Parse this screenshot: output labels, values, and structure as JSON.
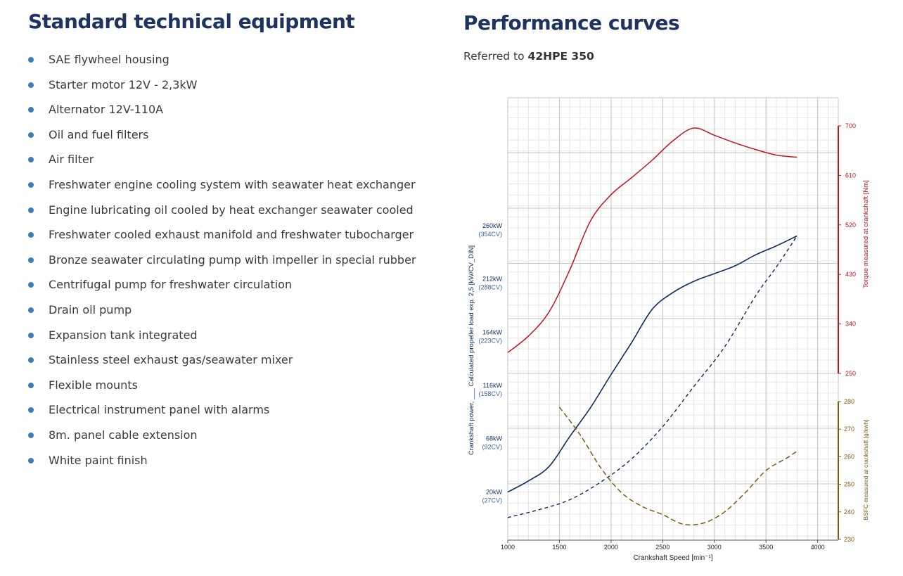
{
  "equipment": {
    "title": "Standard technical equipment",
    "items": [
      "SAE flywheel housing",
      "Starter motor 12V - 2,3kW",
      "Alternator 12V-110A",
      "Oil and fuel filters",
      "Air filter",
      "Freshwater engine cooling system with seawater heat exchanger",
      "Engine lubricating oil cooled by heat exchanger seawater cooled",
      "Freshwater cooled exhaust manifold and freshwater tubocharger",
      "Bronze seawater circulating pump with impeller in special rubber",
      "Centrifugal pump for freshwater circulation",
      "Drain oil pump",
      "Expansion tank integrated",
      "Stainless steel exhaust gas/seawater mixer",
      "Flexible mounts",
      "Electrical instrument panel with alarms",
      "8m. panel cable extension",
      "White paint finish"
    ]
  },
  "performance": {
    "title": "Performance curves",
    "referred_prefix": "Referred to",
    "model": "42HPE 350"
  },
  "colors": {
    "heading": "#1d3461",
    "bullet": "#3f7db8",
    "power": "#0d2a5c",
    "torque": "#c0121f",
    "bsfc": "#7a5c10",
    "grid": "#cccccc"
  },
  "chart_data": {
    "type": "line",
    "xlabel": "Crankshaft Speed [min⁻¹]",
    "xlim": [
      1000,
      4200
    ],
    "xticks": [
      1000,
      1500,
      2000,
      2500,
      3000,
      3500,
      4000
    ],
    "ylabel_power": "Crankshaft power, ___ Calculated propeller load exp. 2,5 [kW/CV_DIN]",
    "power_ticks": [
      {
        "kw": "20kW",
        "cv": "(27CV)",
        "value": 20
      },
      {
        "kw": "68kW",
        "cv": "(92CV)",
        "value": 68
      },
      {
        "kw": "116kW",
        "cv": "(158CV)",
        "value": 116
      },
      {
        "kw": "164kW",
        "cv": "(223CV)",
        "value": 164
      },
      {
        "kw": "212kW",
        "cv": "(288CV)",
        "value": 212
      },
      {
        "kw": "260kW",
        "cv": "(354CV)",
        "value": 260
      }
    ],
    "ylabel_torque": "Torque measured at crankshaft [Nm]",
    "torque_ticks": [
      250,
      340,
      430,
      520,
      610,
      700
    ],
    "ylabel_bsfc": "BSFC measured  at crankshaft [g/kwh]",
    "bsfc_ticks": [
      230,
      240,
      250,
      260,
      270,
      280
    ],
    "series": [
      {
        "name": "Crankshaft power",
        "axis": "power",
        "x": [
          1000,
          1200,
          1400,
          1600,
          1800,
          2000,
          2200,
          2400,
          2600,
          2800,
          3000,
          3200,
          3400,
          3600,
          3800
        ],
        "y": [
          23,
          33,
          46,
          73,
          99,
          129,
          158,
          188,
          203,
          213,
          220,
          227,
          237,
          245,
          254
        ]
      },
      {
        "name": "Calculated propeller load exp. 2,5",
        "axis": "power",
        "x": [
          1000,
          1300,
          1600,
          1900,
          2200,
          2500,
          2800,
          3100,
          3400,
          3600,
          3800
        ],
        "y": [
          0,
          7,
          16,
          32,
          53,
          82,
          118,
          154,
          200,
          226,
          254
        ]
      },
      {
        "name": "Torque measured at crankshaft",
        "axis": "torque",
        "x": [
          1000,
          1200,
          1400,
          1600,
          1800,
          2000,
          2200,
          2400,
          2600,
          2800,
          3000,
          3200,
          3400,
          3600,
          3800
        ],
        "y": [
          288,
          318,
          362,
          438,
          527,
          575,
          606,
          638,
          673,
          696,
          683,
          669,
          657,
          647,
          643
        ]
      },
      {
        "name": "BSFC measured at crankshaft",
        "axis": "bsfc",
        "x": [
          1500,
          1700,
          1900,
          2100,
          2300,
          2500,
          2700,
          2900,
          3100,
          3300,
          3500,
          3700,
          3800
        ],
        "y": [
          278,
          268,
          256,
          247,
          242,
          239,
          235.5,
          236,
          240,
          247,
          255,
          259.5,
          262
        ]
      }
    ]
  }
}
